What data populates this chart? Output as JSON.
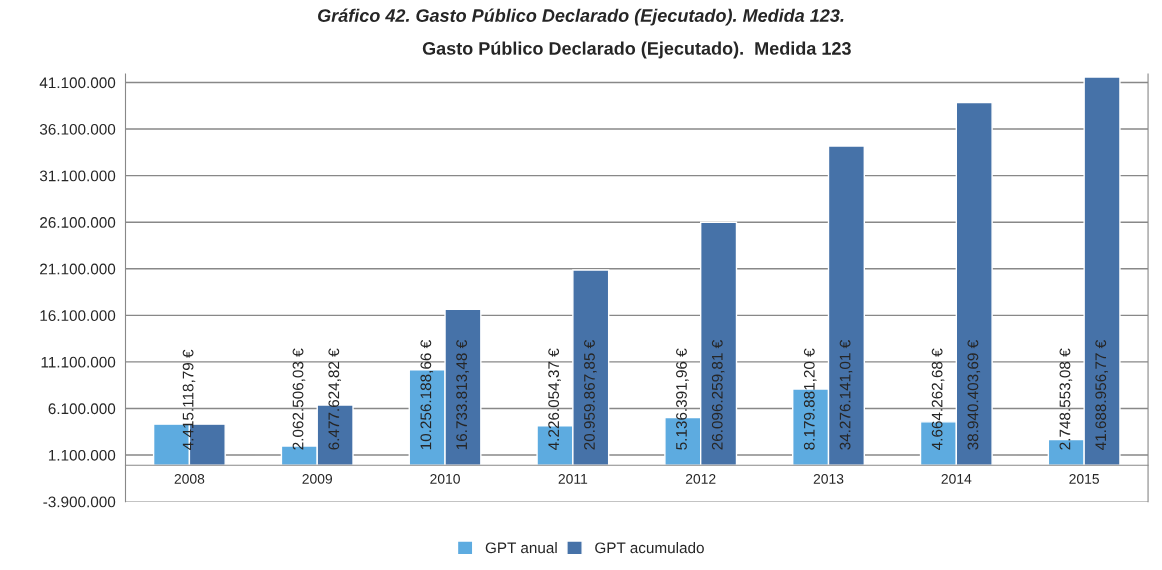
{
  "chart_data": {
    "type": "bar",
    "title": "Gasto Público Declarado (Ejecutado).  Medida 123",
    "annotations": [
      "Gráfico 42. Gasto Público Declarado (Ejecutado). Medida 123."
    ],
    "categories": [
      "2008",
      "2009",
      "2010",
      "2011",
      "2012",
      "2013",
      "2014",
      "2015"
    ],
    "series": [
      {
        "name": "GPT anual",
        "color": "#5dabe0",
        "values": [
          4415118.79,
          2062506.03,
          10256188.66,
          4226054.37,
          5136391.96,
          8179881.2,
          4664262.68,
          2748553.08
        ],
        "value_labels": [
          null,
          "2.062.506,03 €",
          "10.256.188,66 €",
          "4.226.054,37 €",
          "5.136.391,96 €",
          "8.179.881,20 €",
          "4.664.262,68 €",
          "2.748.553,08 €"
        ]
      },
      {
        "name": "GPT acumulado",
        "color": "#4672a8",
        "values": [
          4415118.79,
          6477624.82,
          16733813.48,
          20959867.85,
          26096259.81,
          34276141.01,
          38940403.69,
          41688956.77
        ],
        "value_labels": [
          "4.415.118,79 €",
          "6.477.624,82 €",
          "16.733.813,48 €",
          "20.959.867,85 €",
          "26.096.259,81 €",
          "34.276.141,01 €",
          "38.940.403,69 €",
          "41.688.956,77 €"
        ]
      }
    ],
    "ylim": [
      -3900000,
      42000000
    ],
    "yticks": [
      {
        "value": -3900000,
        "label": "-3.900.000"
      },
      {
        "value": 1100000,
        "label": "1.100.000"
      },
      {
        "value": 6100000,
        "label": "6.100.000"
      },
      {
        "value": 11100000,
        "label": "11.100.000"
      },
      {
        "value": 16100000,
        "label": "16.100.000"
      },
      {
        "value": 21100000,
        "label": "21.100.000"
      },
      {
        "value": 26100000,
        "label": "26.100.000"
      },
      {
        "value": 31100000,
        "label": "31.100.000"
      },
      {
        "value": 36100000,
        "label": "36.100.000"
      },
      {
        "value": 41100000,
        "label": "41.100.000"
      }
    ],
    "grid": "y",
    "legend": "bottom"
  }
}
